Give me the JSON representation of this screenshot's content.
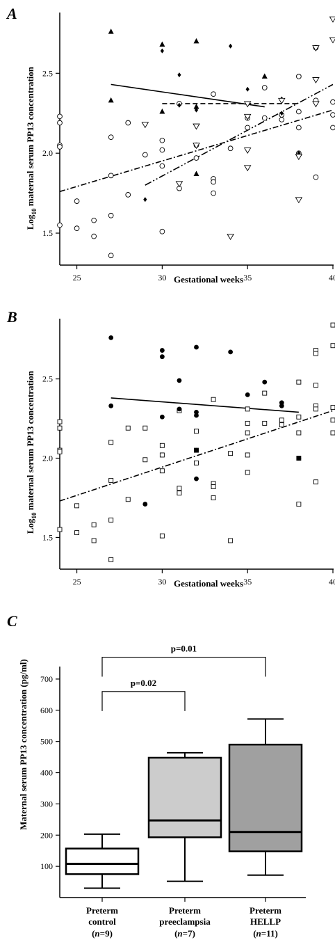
{
  "chart_data": [
    {
      "type": "scatter",
      "panel_label": "A",
      "xlabel": "Gestational weeks",
      "ylabel_main": "Log",
      "ylabel_sub": "10",
      "ylabel_rest": " maternal serum PP13 concentration",
      "xlim": [
        24,
        40
      ],
      "ylim": [
        1.3,
        2.88
      ],
      "xticks": [
        25,
        30,
        35,
        40
      ],
      "xtick_labels": [
        "25",
        "30",
        "35",
        "40"
      ],
      "yticks": [
        1.5,
        2.0,
        2.5
      ],
      "ytick_labels": [
        "1.5",
        "2.0",
        "2.5"
      ],
      "series": [
        {
          "marker": "circle-open",
          "points": [
            [
              24,
              2.23
            ],
            [
              24,
              2.19
            ],
            [
              24,
              2.05
            ],
            [
              24,
              2.04
            ],
            [
              24,
              1.55
            ],
            [
              25,
              1.7
            ],
            [
              25,
              1.53
            ],
            [
              26,
              1.58
            ],
            [
              26,
              1.48
            ],
            [
              27,
              2.1
            ],
            [
              27,
              1.86
            ],
            [
              27,
              1.61
            ],
            [
              27,
              1.36
            ],
            [
              28,
              2.19
            ],
            [
              28,
              1.74
            ],
            [
              29,
              1.99
            ],
            [
              30,
              2.08
            ],
            [
              30,
              2.02
            ],
            [
              30,
              1.92
            ],
            [
              30,
              1.51
            ],
            [
              31,
              2.31
            ],
            [
              31,
              1.78
            ],
            [
              32,
              2.05
            ],
            [
              32,
              1.97
            ],
            [
              33,
              2.37
            ],
            [
              33,
              1.84
            ],
            [
              33,
              1.82
            ],
            [
              33,
              1.75
            ],
            [
              34,
              2.03
            ],
            [
              35,
              2.22
            ],
            [
              35,
              2.16
            ],
            [
              36,
              2.41
            ],
            [
              36,
              2.22
            ],
            [
              37,
              2.24
            ],
            [
              37,
              2.21
            ],
            [
              38,
              2.48
            ],
            [
              38,
              2.26
            ],
            [
              38,
              2.16
            ],
            [
              38,
              2.0
            ],
            [
              39,
              2.66
            ],
            [
              39,
              2.33
            ],
            [
              39,
              1.85
            ],
            [
              40,
              2.32
            ],
            [
              40,
              2.24
            ],
            [
              40,
              2.16
            ]
          ]
        },
        {
          "marker": "triangle-filled",
          "points": [
            [
              27,
              2.76
            ],
            [
              27,
              2.33
            ],
            [
              30,
              2.68
            ],
            [
              30,
              2.26
            ],
            [
              32,
              2.7
            ],
            [
              32,
              2.29
            ],
            [
              32,
              1.87
            ],
            [
              36,
              2.48
            ]
          ]
        },
        {
          "marker": "diamond-filled",
          "points": [
            [
              29,
              1.71
            ],
            [
              30,
              2.64
            ],
            [
              31,
              2.49
            ],
            [
              31,
              2.3
            ],
            [
              32,
              2.27
            ],
            [
              32,
              2.05
            ],
            [
              34,
              2.67
            ],
            [
              35,
              2.4
            ],
            [
              37,
              2.34
            ],
            [
              37,
              2.25
            ],
            [
              38,
              2.0
            ]
          ]
        },
        {
          "marker": "triangle-open",
          "points": [
            [
              29,
              2.18
            ],
            [
              31,
              1.81
            ],
            [
              32,
              2.17
            ],
            [
              32,
              2.05
            ],
            [
              34,
              1.48
            ],
            [
              35,
              2.31
            ],
            [
              35,
              2.23
            ],
            [
              35,
              2.02
            ],
            [
              35,
              1.91
            ],
            [
              37,
              2.33
            ],
            [
              38,
              1.98
            ],
            [
              38,
              1.71
            ],
            [
              39,
              2.66
            ],
            [
              39,
              2.46
            ],
            [
              39,
              2.31
            ],
            [
              40,
              2.84
            ],
            [
              40,
              2.71
            ]
          ]
        }
      ],
      "fit_lines": [
        {
          "style": "solid",
          "x": [
            27,
            36
          ],
          "y": [
            2.43,
            2.29
          ]
        },
        {
          "style": "dashed",
          "x": [
            30,
            38
          ],
          "y": [
            2.31,
            2.31
          ]
        },
        {
          "style": "dashdot",
          "x": [
            24,
            40
          ],
          "y": [
            1.76,
            2.27
          ]
        },
        {
          "style": "dashdotdot",
          "x": [
            29,
            40
          ],
          "y": [
            1.8,
            2.43
          ]
        }
      ]
    },
    {
      "type": "scatter",
      "panel_label": "B",
      "xlabel": "Gestational weeks",
      "ylabel_main": "Log",
      "ylabel_sub": "10",
      "ylabel_rest": " maternal serum PP13 concentration",
      "xlim": [
        24,
        40
      ],
      "ylim": [
        1.3,
        2.88
      ],
      "xticks": [
        25,
        30,
        35,
        40
      ],
      "xtick_labels": [
        "25",
        "30",
        "35",
        "40"
      ],
      "yticks": [
        1.5,
        2.0,
        2.5
      ],
      "ytick_labels": [
        "1.5",
        "2.0",
        "2.5"
      ],
      "series": [
        {
          "marker": "square-open",
          "points": [
            [
              24,
              2.23
            ],
            [
              24,
              2.19
            ],
            [
              24,
              2.05
            ],
            [
              24,
              2.04
            ],
            [
              24,
              1.55
            ],
            [
              25,
              1.7
            ],
            [
              25,
              1.53
            ],
            [
              26,
              1.58
            ],
            [
              26,
              1.48
            ],
            [
              27,
              2.1
            ],
            [
              27,
              1.86
            ],
            [
              27,
              1.61
            ],
            [
              27,
              1.36
            ],
            [
              28,
              2.19
            ],
            [
              28,
              1.74
            ],
            [
              29,
              2.19
            ],
            [
              29,
              1.99
            ],
            [
              30,
              2.08
            ],
            [
              30,
              2.02
            ],
            [
              30,
              1.92
            ],
            [
              30,
              1.51
            ],
            [
              31,
              2.3
            ],
            [
              31,
              1.81
            ],
            [
              31,
              1.78
            ],
            [
              32,
              2.17
            ],
            [
              32,
              2.05
            ],
            [
              32,
              1.97
            ],
            [
              33,
              2.37
            ],
            [
              33,
              1.84
            ],
            [
              33,
              1.82
            ],
            [
              33,
              1.75
            ],
            [
              34,
              2.03
            ],
            [
              34,
              1.48
            ],
            [
              35,
              2.31
            ],
            [
              35,
              2.22
            ],
            [
              35,
              2.16
            ],
            [
              35,
              2.02
            ],
            [
              35,
              1.91
            ],
            [
              36,
              2.41
            ],
            [
              36,
              2.22
            ],
            [
              37,
              2.24
            ],
            [
              37,
              2.21
            ],
            [
              38,
              2.48
            ],
            [
              38,
              2.26
            ],
            [
              38,
              2.16
            ],
            [
              38,
              2.0
            ],
            [
              38,
              1.71
            ],
            [
              39,
              2.68
            ],
            [
              39,
              2.66
            ],
            [
              39,
              2.46
            ],
            [
              39,
              2.33
            ],
            [
              39,
              2.31
            ],
            [
              39,
              1.85
            ],
            [
              40,
              2.84
            ],
            [
              40,
              2.71
            ],
            [
              40,
              2.32
            ],
            [
              40,
              2.24
            ],
            [
              40,
              2.16
            ]
          ]
        },
        {
          "marker": "circle-filled",
          "points": [
            [
              27,
              2.76
            ],
            [
              27,
              2.33
            ],
            [
              29,
              1.71
            ],
            [
              30,
              2.68
            ],
            [
              30,
              2.64
            ],
            [
              30,
              2.26
            ],
            [
              31,
              2.49
            ],
            [
              31,
              2.31
            ],
            [
              32,
              2.7
            ],
            [
              32,
              2.29
            ],
            [
              32,
              2.27
            ],
            [
              32,
              2.05
            ],
            [
              32,
              1.87
            ],
            [
              34,
              2.67
            ],
            [
              35,
              2.4
            ],
            [
              36,
              2.48
            ],
            [
              37,
              2.35
            ],
            [
              37,
              2.33
            ],
            [
              38,
              2.0
            ]
          ]
        }
      ],
      "fit_lines": [
        {
          "style": "solid",
          "x": [
            27,
            38
          ],
          "y": [
            2.38,
            2.29
          ]
        },
        {
          "style": "dashdot",
          "x": [
            24,
            40
          ],
          "y": [
            1.73,
            2.3
          ]
        }
      ]
    },
    {
      "type": "box",
      "panel_label": "C",
      "ylabel": "Maternal serum PP13 concentration  (pg/ml)",
      "ylim": [
        0,
        740
      ],
      "yticks": [
        100,
        200,
        300,
        400,
        500,
        600,
        700
      ],
      "ytick_labels": [
        "100",
        "200",
        "300",
        "400",
        "500",
        "600",
        "700"
      ],
      "categories": [
        {
          "line1": "Preterm",
          "line2": "control",
          "n_pre": "(",
          "n_italic": "n",
          "n_post": "=9)",
          "fill": "#ffffff",
          "min": 30,
          "q1": 75,
          "median": 108,
          "q3": 157,
          "max": 203
        },
        {
          "line1": "Preterm",
          "line2": "preeclampsia",
          "n_pre": "(",
          "n_italic": "n",
          "n_post": "=7)",
          "fill": "#cccccc",
          "min": 52,
          "q1": 193,
          "median": 247,
          "q3": 448,
          "max": 464
        },
        {
          "line1": "Preterm",
          "line2": "HELLP",
          "n_pre": "(",
          "n_italic": "n",
          "n_post": "=11)",
          "fill": "#a0a0a0",
          "min": 72,
          "q1": 148,
          "median": 210,
          "q3": 490,
          "max": 572
        }
      ],
      "significance": [
        {
          "label": "p=0.02",
          "from": 0,
          "to": 1,
          "level": 660
        },
        {
          "label": "p=0.01",
          "from": 0,
          "to": 2,
          "level": 770
        }
      ]
    }
  ]
}
